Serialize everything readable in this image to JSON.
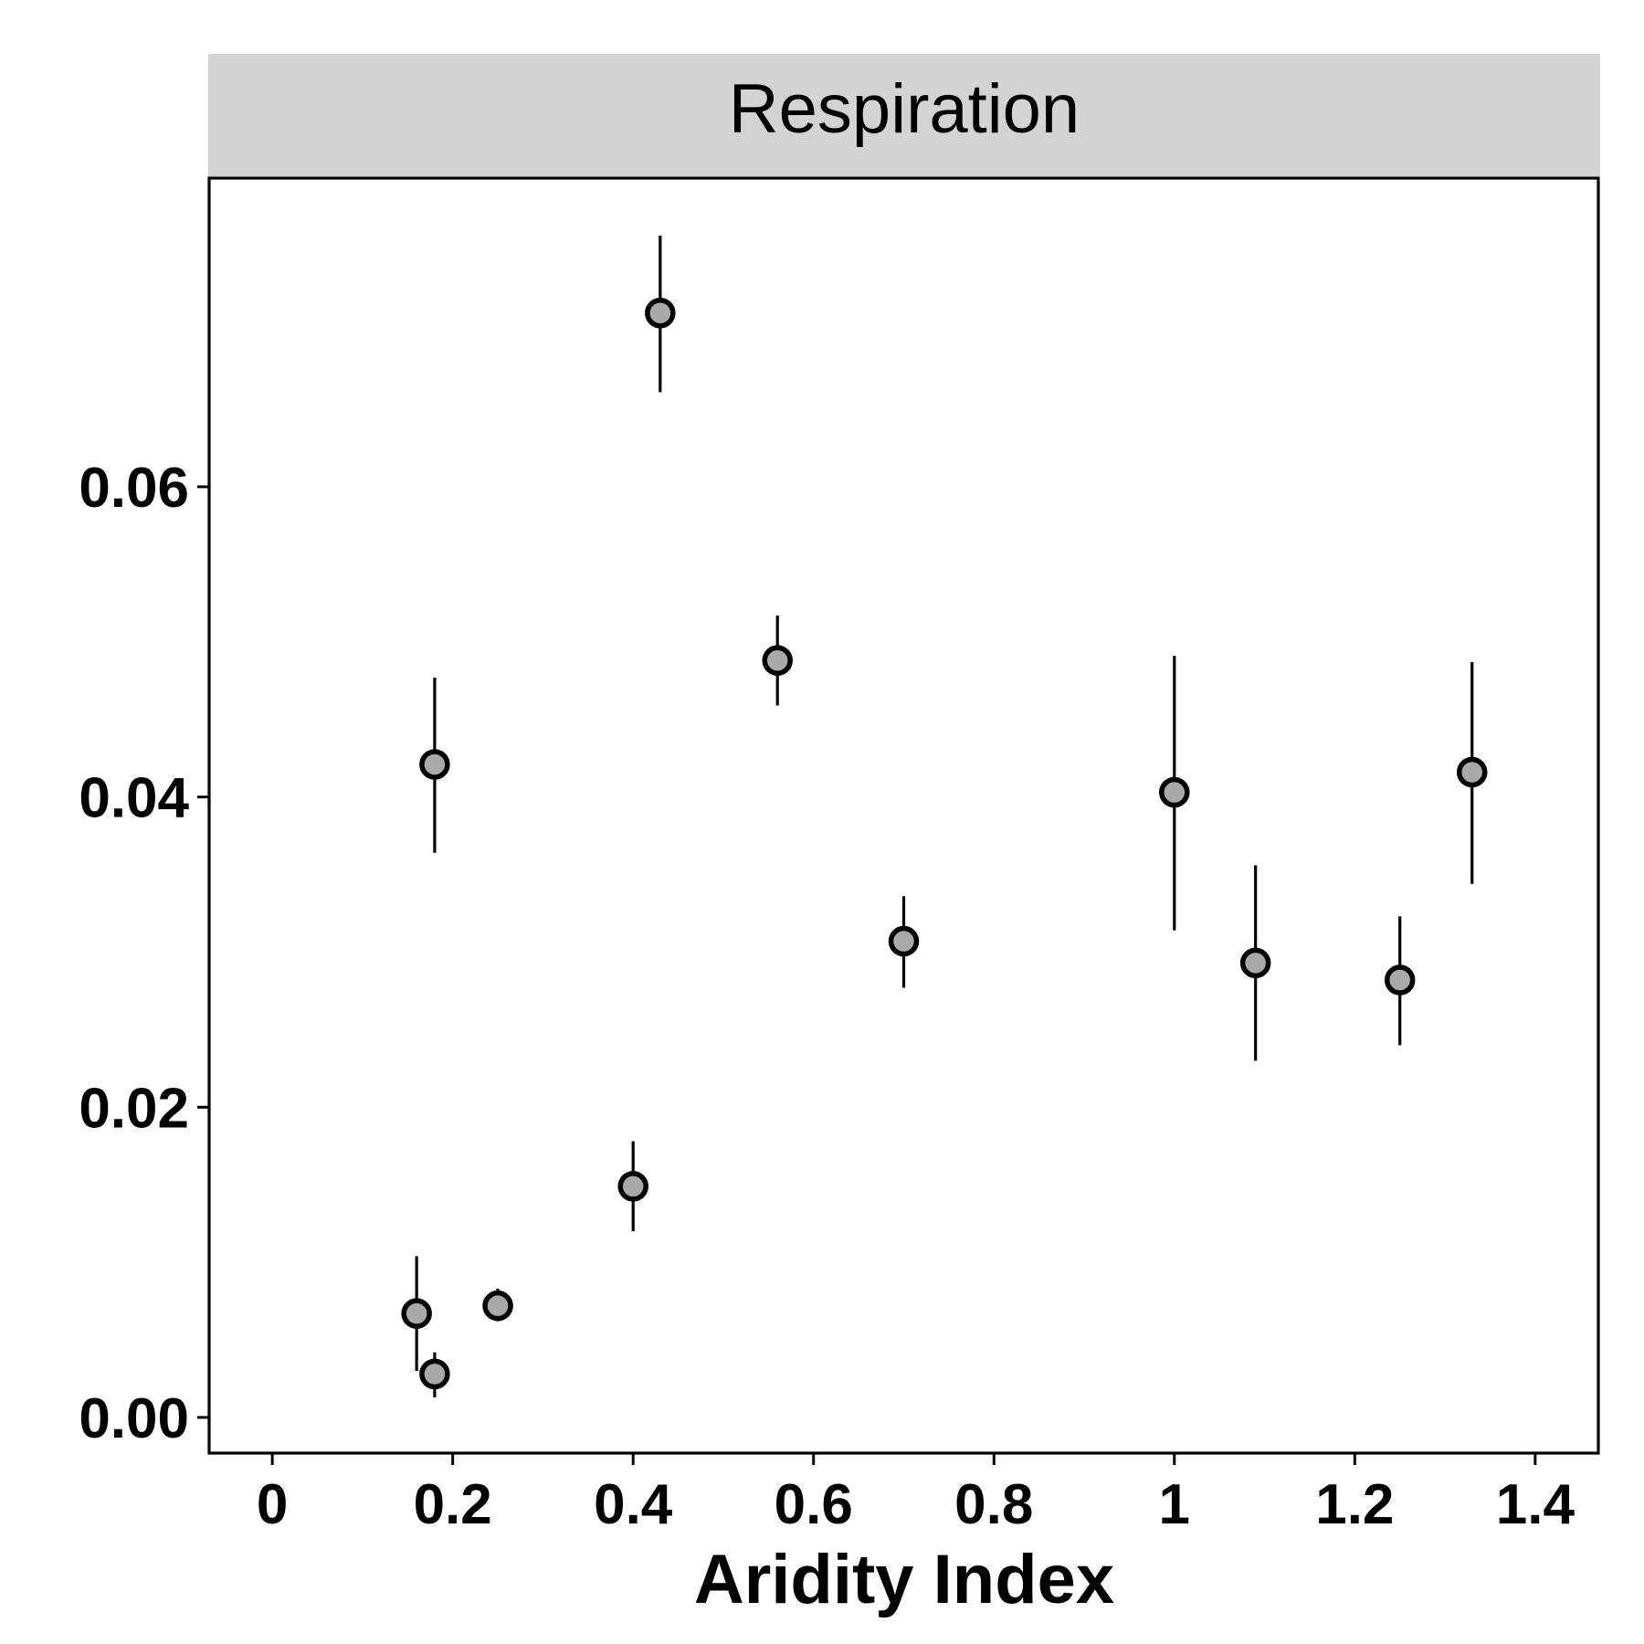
{
  "chart_data": {
    "type": "scatter",
    "facet_title": "Respiration",
    "xlabel": "Aridity Index",
    "ylabel": "",
    "xlim": [
      -0.07,
      1.47
    ],
    "ylim": [
      -0.0023,
      0.0799
    ],
    "x_ticks": [
      0,
      0.2,
      0.4,
      0.6,
      0.8,
      1,
      1.2,
      1.4
    ],
    "x_tick_labels": [
      "0",
      "0.2",
      "0.4",
      "0.6",
      "0.8",
      "1",
      "1.2",
      "1.4"
    ],
    "y_ticks": [
      0,
      0.02,
      0.04,
      0.06
    ],
    "y_tick_labels": [
      "0.00",
      "0.02",
      "0.04",
      "0.06"
    ],
    "grid": false,
    "legend": "none",
    "point_fill": "#a9a9a9",
    "point_stroke": "#000000",
    "strip_color": "#d3d3d3",
    "points": [
      {
        "x": 0.16,
        "y": 0.0067,
        "ymin": 0.003,
        "ymax": 0.0104
      },
      {
        "x": 0.18,
        "y": 0.0028,
        "ymin": 0.0013,
        "ymax": 0.0042
      },
      {
        "x": 0.18,
        "y": 0.0421,
        "ymin": 0.0364,
        "ymax": 0.0477
      },
      {
        "x": 0.25,
        "y": 0.0072,
        "ymin": 0.0062,
        "ymax": 0.0083
      },
      {
        "x": 0.4,
        "y": 0.0149,
        "ymin": 0.012,
        "ymax": 0.0178
      },
      {
        "x": 0.43,
        "y": 0.0712,
        "ymin": 0.0661,
        "ymax": 0.0762
      },
      {
        "x": 0.56,
        "y": 0.0488,
        "ymin": 0.0459,
        "ymax": 0.0517
      },
      {
        "x": 0.7,
        "y": 0.0307,
        "ymin": 0.0277,
        "ymax": 0.0336
      },
      {
        "x": 1.0,
        "y": 0.0403,
        "ymin": 0.0314,
        "ymax": 0.0491
      },
      {
        "x": 1.09,
        "y": 0.0293,
        "ymin": 0.023,
        "ymax": 0.0356
      },
      {
        "x": 1.25,
        "y": 0.0282,
        "ymin": 0.024,
        "ymax": 0.0323
      },
      {
        "x": 1.33,
        "y": 0.0416,
        "ymin": 0.0344,
        "ymax": 0.0487
      }
    ]
  }
}
